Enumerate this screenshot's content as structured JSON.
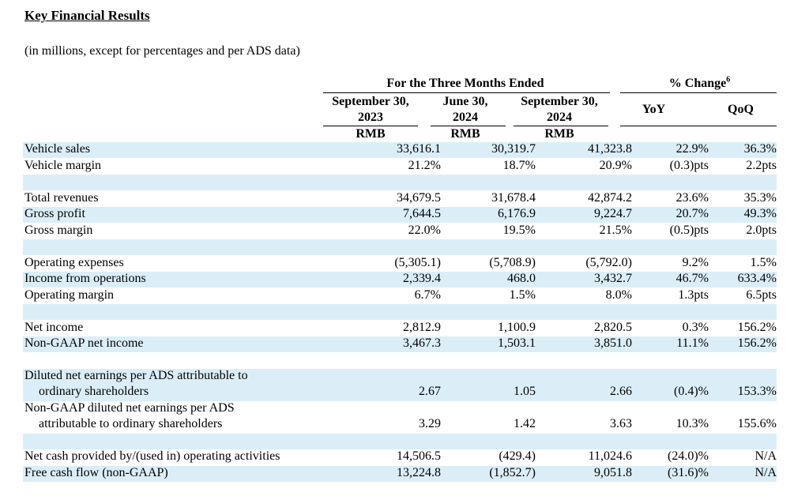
{
  "title": "Key Financial Results",
  "subtitle": "(in millions, except for percentages and per ADS data)",
  "header": {
    "group": "For the Three Months Ended",
    "change_group": "% Change",
    "change_note": "6",
    "columns": [
      {
        "line1": "September 30,",
        "line2": "2023",
        "currency": "RMB"
      },
      {
        "line1": "June 30,",
        "line2": "2024",
        "currency": "RMB"
      },
      {
        "line1": "September 30,",
        "line2": "2024",
        "currency": "RMB"
      }
    ],
    "yoy": "YoY",
    "qoq": "QoQ"
  },
  "rows": [
    {
      "label": "Vehicle sales",
      "values": [
        "33,616.1",
        "30,319.7",
        "41,323.8",
        "22.9%",
        "36.3%"
      ]
    },
    {
      "label": "Vehicle margin",
      "values": [
        "21.2%",
        "18.7%",
        "20.9%",
        "(0.3)pts",
        "2.2pts"
      ]
    },
    {
      "label": "Total revenues",
      "values": [
        "34,679.5",
        "31,678.4",
        "42,874.2",
        "23.6%",
        "35.3%"
      ]
    },
    {
      "label": "Gross profit",
      "values": [
        "7,644.5",
        "6,176.9",
        "9,224.7",
        "20.7%",
        "49.3%"
      ]
    },
    {
      "label": "Gross margin",
      "values": [
        "22.0%",
        "19.5%",
        "21.5%",
        "(0.5)pts",
        "2.0pts"
      ]
    },
    {
      "label": "Operating expenses",
      "values": [
        "(5,305.1)",
        "(5,708.9)",
        "(5,792.0)",
        "9.2%",
        "1.5%"
      ]
    },
    {
      "label": "Income from operations",
      "values": [
        "2,339.4",
        "468.0",
        "3,432.7",
        "46.7%",
        "633.4%"
      ]
    },
    {
      "label": "Operating margin",
      "values": [
        "6.7%",
        "1.5%",
        "8.0%",
        "1.3pts",
        "6.5pts"
      ]
    },
    {
      "label": "Net income",
      "values": [
        "2,812.9",
        "1,100.9",
        "2,820.5",
        "0.3%",
        "156.2%"
      ]
    },
    {
      "label": "Non-GAAP net income",
      "values": [
        "3,467.3",
        "1,503.1",
        "3,851.0",
        "11.1%",
        "156.2%"
      ]
    },
    {
      "label": "Diluted net earnings per ADS attributable to",
      "label2": "ordinary shareholders",
      "values": [
        "2.67",
        "1.05",
        "2.66",
        "(0.4)%",
        "153.3%"
      ]
    },
    {
      "label": "Non-GAAP diluted net earnings per ADS",
      "label2": "attributable to ordinary shareholders",
      "values": [
        "3.29",
        "1.42",
        "3.63",
        "10.3%",
        "155.6%"
      ]
    },
    {
      "label": "Net cash provided by/(used in) operating activities",
      "values": [
        "14,506.5",
        "(429.4)",
        "11,024.6",
        "(24.0)%",
        "N/A"
      ]
    },
    {
      "label": "Free cash flow (non-GAAP)",
      "values": [
        "13,224.8",
        "(1,852.7)",
        "9,051.8",
        "(31.6)%",
        "N/A"
      ]
    }
  ]
}
